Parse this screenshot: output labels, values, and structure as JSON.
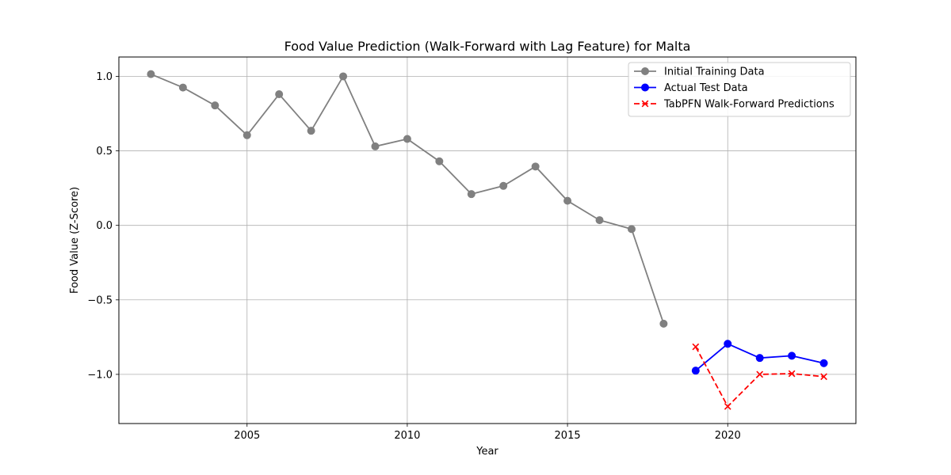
{
  "chart_data": {
    "type": "line",
    "title": "Food Value Prediction (Walk-Forward with Lag Feature) for Malta",
    "xlabel": "Year",
    "ylabel": "Food Value (Z-Score)",
    "xlim": [
      2001.0,
      2024.0
    ],
    "ylim": [
      -1.33,
      1.13
    ],
    "xticks": [
      2005,
      2010,
      2015,
      2020
    ],
    "yticks": [
      -1.0,
      -0.5,
      0.0,
      0.5,
      1.0
    ],
    "ytick_labels": [
      "−1.0",
      "−0.5",
      "0.0",
      "0.5",
      "1.0"
    ],
    "grid": true,
    "legend_position": "top-right",
    "series": [
      {
        "name": "Initial Training Data",
        "color": "#808080",
        "line_style": "solid",
        "marker": "circle",
        "x": [
          2002,
          2003,
          2004,
          2005,
          2006,
          2007,
          2008,
          2009,
          2010,
          2011,
          2012,
          2013,
          2014,
          2015,
          2016,
          2017,
          2018
        ],
        "values": [
          1.015,
          0.925,
          0.805,
          0.605,
          0.88,
          0.635,
          1.0,
          0.53,
          0.58,
          0.43,
          0.21,
          0.265,
          0.395,
          0.165,
          0.035,
          -0.025,
          -0.66
        ]
      },
      {
        "name": "Actual Test Data",
        "color": "#0000ff",
        "line_style": "solid",
        "marker": "circle",
        "x": [
          2019,
          2020,
          2021,
          2022,
          2023
        ],
        "values": [
          -0.975,
          -0.795,
          -0.89,
          -0.875,
          -0.925
        ]
      },
      {
        "name": "TabPFN Walk-Forward Predictions",
        "color": "#ff0000",
        "line_style": "dashed",
        "marker": "x",
        "x": [
          2019,
          2020,
          2021,
          2022,
          2023
        ],
        "values": [
          -0.815,
          -1.215,
          -1.0,
          -0.995,
          -1.015
        ]
      }
    ]
  }
}
